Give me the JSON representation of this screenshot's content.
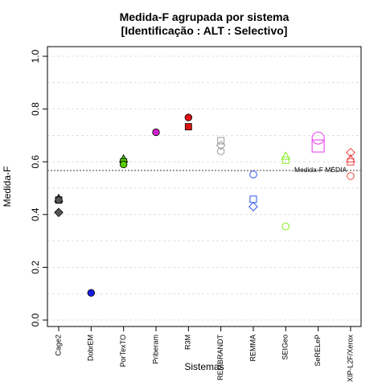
{
  "chart_data": {
    "type": "scatter",
    "title_line1": "Medida-F agrupada por sistema",
    "title_line2": "[Identificação : ALT : Selectivo]",
    "xlabel": "Sistemas",
    "ylabel": "Medida-F",
    "ylim": [
      0,
      1
    ],
    "yticks": [
      "0.0",
      "0.2",
      "0.4",
      "0.6",
      "0.8",
      "1.0"
    ],
    "grid": "horizontal dashed",
    "reference_line": {
      "y": 0.567,
      "label": "Medida-F MÉDIA"
    },
    "categories": [
      "Cage2",
      "DobrEM",
      "PorTexTO",
      "Priberam",
      "R3M",
      "REMBRANDT",
      "REMMA",
      "SEIGeo",
      "SeRELeP",
      "XIP-L2F/Xerox"
    ],
    "series": [
      {
        "category": "Cage2",
        "color": "#555555",
        "filled": true,
        "points": [
          {
            "shape": "triangle",
            "y": 0.46
          },
          {
            "shape": "square",
            "y": 0.455
          },
          {
            "shape": "circle",
            "y": 0.455
          },
          {
            "shape": "diamond",
            "y": 0.408
          }
        ]
      },
      {
        "category": "DobrEM",
        "color": "#1a1ae6",
        "filled": true,
        "points": [
          {
            "shape": "circle",
            "y": 0.103
          }
        ]
      },
      {
        "category": "PorTexTO",
        "color": "#55cc00",
        "filled": true,
        "points": [
          {
            "shape": "triangle",
            "y": 0.61
          },
          {
            "shape": "square",
            "y": 0.6
          },
          {
            "shape": "circle",
            "y": 0.59
          }
        ]
      },
      {
        "category": "Priberam",
        "color": "#cc22cc",
        "filled": true,
        "points": [
          {
            "shape": "circle",
            "y": 0.712
          }
        ]
      },
      {
        "category": "R3M",
        "color": "#dd1111",
        "filled": true,
        "points": [
          {
            "shape": "circle",
            "y": 0.768
          },
          {
            "shape": "square",
            "y": 0.733
          }
        ]
      },
      {
        "category": "REMBRANDT",
        "color": "#999999",
        "filled": false,
        "points": [
          {
            "shape": "square",
            "y": 0.68
          },
          {
            "shape": "diamond",
            "y": 0.662
          },
          {
            "shape": "circle",
            "y": 0.64
          }
        ]
      },
      {
        "category": "REMMA",
        "color": "#3355ee",
        "filled": false,
        "points": [
          {
            "shape": "circle",
            "y": 0.552
          },
          {
            "shape": "square",
            "y": 0.458
          },
          {
            "shape": "diamond",
            "y": 0.43
          }
        ]
      },
      {
        "category": "SEIGeo",
        "color": "#88ee22",
        "filled": false,
        "points": [
          {
            "shape": "triangle",
            "y": 0.62
          },
          {
            "shape": "square",
            "y": 0.606
          },
          {
            "shape": "circle",
            "y": 0.355
          }
        ]
      },
      {
        "category": "SeRELeP",
        "color": "#ee55ee",
        "filled": false,
        "points": [
          {
            "shape": "bigcircle",
            "y": 0.69
          },
          {
            "shape": "bigsquare",
            "y": 0.66
          }
        ]
      },
      {
        "category": "XIP-L2F/Xerox",
        "color": "#ee4444",
        "filled": false,
        "points": [
          {
            "shape": "diamond",
            "y": 0.635
          },
          {
            "shape": "triangle",
            "y": 0.61
          },
          {
            "shape": "square",
            "y": 0.6
          },
          {
            "shape": "circle",
            "y": 0.546
          }
        ]
      }
    ]
  }
}
